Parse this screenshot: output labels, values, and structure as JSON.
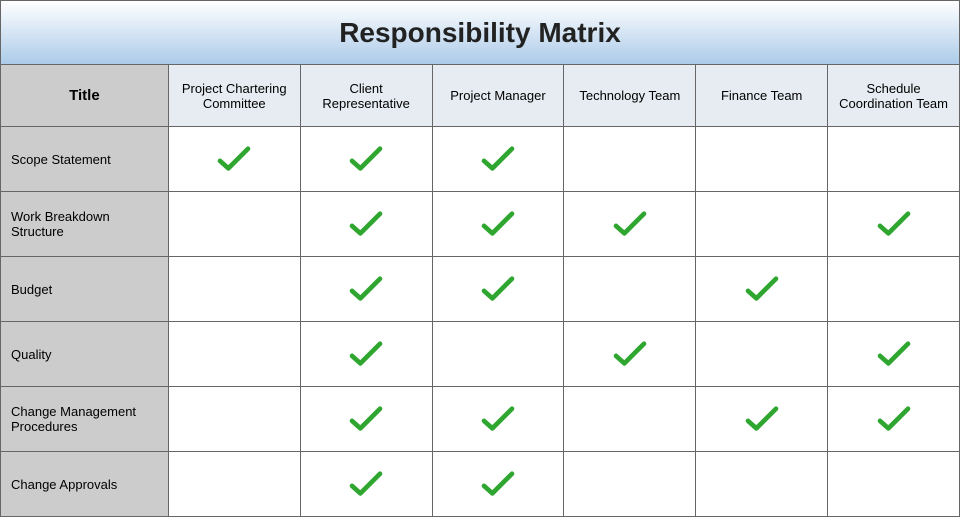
{
  "title": "Responsibility Matrix",
  "title_fontsize": 28,
  "title_color": "#222222",
  "title_bg_gradient_top": "#ffffff",
  "title_bg_gradient_bottom": "#accbe9",
  "header_bg": "#e6ecf2",
  "title_col_header_bg": "#cccccc",
  "title_col_header_label": "Title",
  "row_header_bg": "#cccccc",
  "cell_bg": "#ffffff",
  "border_color": "#666666",
  "header_fontsize": 13,
  "row_header_fontsize": 13,
  "check_color": "#2fa62f",
  "check_stroke_width": 5,
  "check_width": 38,
  "check_height": 28,
  "title_col_width_pct": 17.5,
  "data_col_width_pct": 13.75,
  "columns": [
    "Project Chartering Committee",
    "Client Representative",
    "Project Manager",
    "Technology Team",
    "Finance Team",
    "Schedule Coordination Team"
  ],
  "rows": [
    {
      "label": "Scope Statement",
      "checks": [
        true,
        true,
        true,
        false,
        false,
        false
      ]
    },
    {
      "label": "Work Breakdown Structure",
      "checks": [
        false,
        true,
        true,
        true,
        false,
        true
      ]
    },
    {
      "label": "Budget",
      "checks": [
        false,
        true,
        true,
        false,
        true,
        false
      ]
    },
    {
      "label": "Quality",
      "checks": [
        false,
        true,
        false,
        true,
        false,
        true
      ]
    },
    {
      "label": "Change Management Procedures",
      "checks": [
        false,
        true,
        true,
        false,
        true,
        true
      ]
    },
    {
      "label": "Change Approvals",
      "checks": [
        false,
        true,
        true,
        false,
        false,
        false
      ]
    }
  ]
}
